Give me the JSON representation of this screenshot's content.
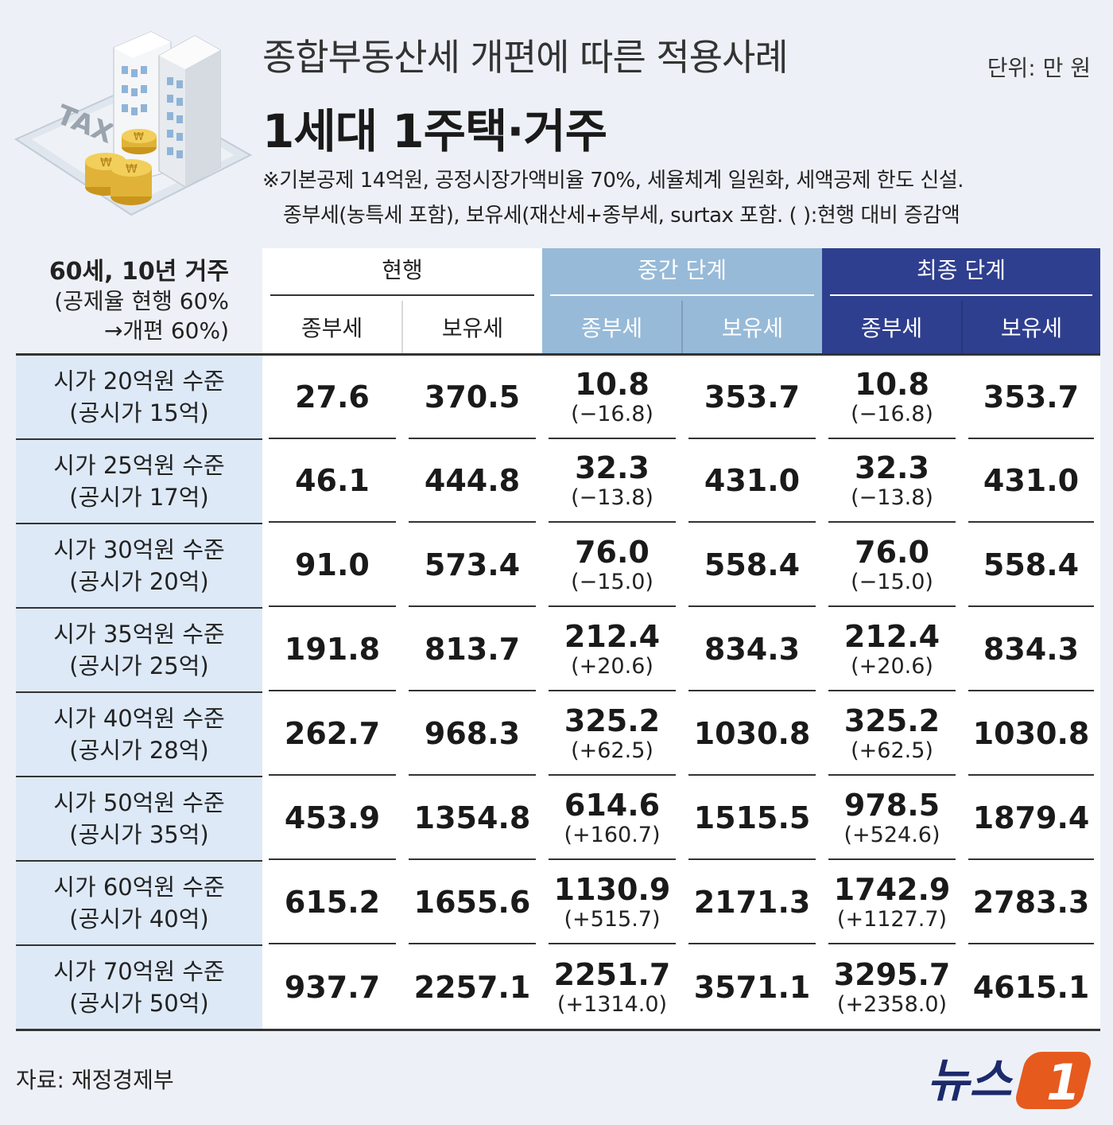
{
  "header": {
    "title": "종합부동산세 개편에 따른 적용사례",
    "subtitle": "1세대 1주택·거주",
    "unit": "단위: 만 원",
    "note_line1": "※기본공제 14억원, 공정시장가액비율 70%, 세율체계 일원화, 세액공제 한도 신설.",
    "note_line2": "종부세(농특세 포함), 보유세(재산세+종부세, surtax 포함. ( ):현행 대비 증감액"
  },
  "illustration": {
    "icon": "tax-buildings-coins-illustration",
    "label": "TAX"
  },
  "table": {
    "condition_line1": "60세, 10년 거주",
    "condition_line2": "(공제율 현행 60%",
    "condition_line3": "→개편 60%)",
    "groups": {
      "current": "현행",
      "intermediate": "중간 단계",
      "final": "최종 단계"
    },
    "col_jongbu": "종부세",
    "col_boyu": "보유세",
    "rows": [
      {
        "label1": "시가 20억원 수준",
        "label2": "(공시가 15억)",
        "cur_j": "27.6",
        "cur_b": "370.5",
        "mid_j": "10.8",
        "mid_jd": "(−16.8)",
        "mid_b": "353.7",
        "fin_j": "10.8",
        "fin_jd": "(−16.8)",
        "fin_b": "353.7"
      },
      {
        "label1": "시가 25억원 수준",
        "label2": "(공시가 17억)",
        "cur_j": "46.1",
        "cur_b": "444.8",
        "mid_j": "32.3",
        "mid_jd": "(−13.8)",
        "mid_b": "431.0",
        "fin_j": "32.3",
        "fin_jd": "(−13.8)",
        "fin_b": "431.0"
      },
      {
        "label1": "시가 30억원 수준",
        "label2": "(공시가 20억)",
        "cur_j": "91.0",
        "cur_b": "573.4",
        "mid_j": "76.0",
        "mid_jd": "(−15.0)",
        "mid_b": "558.4",
        "fin_j": "76.0",
        "fin_jd": "(−15.0)",
        "fin_b": "558.4"
      },
      {
        "label1": "시가 35억원 수준",
        "label2": "(공시가 25억)",
        "cur_j": "191.8",
        "cur_b": "813.7",
        "mid_j": "212.4",
        "mid_jd": "(+20.6)",
        "mid_b": "834.3",
        "fin_j": "212.4",
        "fin_jd": "(+20.6)",
        "fin_b": "834.3"
      },
      {
        "label1": "시가 40억원 수준",
        "label2": "(공시가 28억)",
        "cur_j": "262.7",
        "cur_b": "968.3",
        "mid_j": "325.2",
        "mid_jd": "(+62.5)",
        "mid_b": "1030.8",
        "fin_j": "325.2",
        "fin_jd": "(+62.5)",
        "fin_b": "1030.8"
      },
      {
        "label1": "시가 50억원 수준",
        "label2": "(공시가 35억)",
        "cur_j": "453.9",
        "cur_b": "1354.8",
        "mid_j": "614.6",
        "mid_jd": "(+160.7)",
        "mid_b": "1515.5",
        "fin_j": "978.5",
        "fin_jd": "(+524.6)",
        "fin_b": "1879.4"
      },
      {
        "label1": "시가 60억원 수준",
        "label2": "(공시가 40억)",
        "cur_j": "615.2",
        "cur_b": "1655.6",
        "mid_j": "1130.9",
        "mid_jd": "(+515.7)",
        "mid_b": "2171.3",
        "fin_j": "1742.9",
        "fin_jd": "(+1127.7)",
        "fin_b": "2783.3"
      },
      {
        "label1": "시가 70억원 수준",
        "label2": "(공시가 50억)",
        "cur_j": "937.7",
        "cur_b": "2257.1",
        "mid_j": "2251.7",
        "mid_jd": "(+1314.0)",
        "mid_b": "3571.1",
        "fin_j": "3295.7",
        "fin_jd": "(+2358.0)",
        "fin_b": "4615.1"
      }
    ]
  },
  "footer": {
    "source": "자료: 재정경제부",
    "logo_text": "뉴스",
    "logo_mark": "1",
    "logo_icon": "news1-logo",
    "logo_color": "#e65a1e"
  },
  "colors": {
    "background": "#edf1f7",
    "row_label_bg": "#dde9f7",
    "intermediate_header": "#97bad8",
    "final_header": "#2f3f8f"
  }
}
